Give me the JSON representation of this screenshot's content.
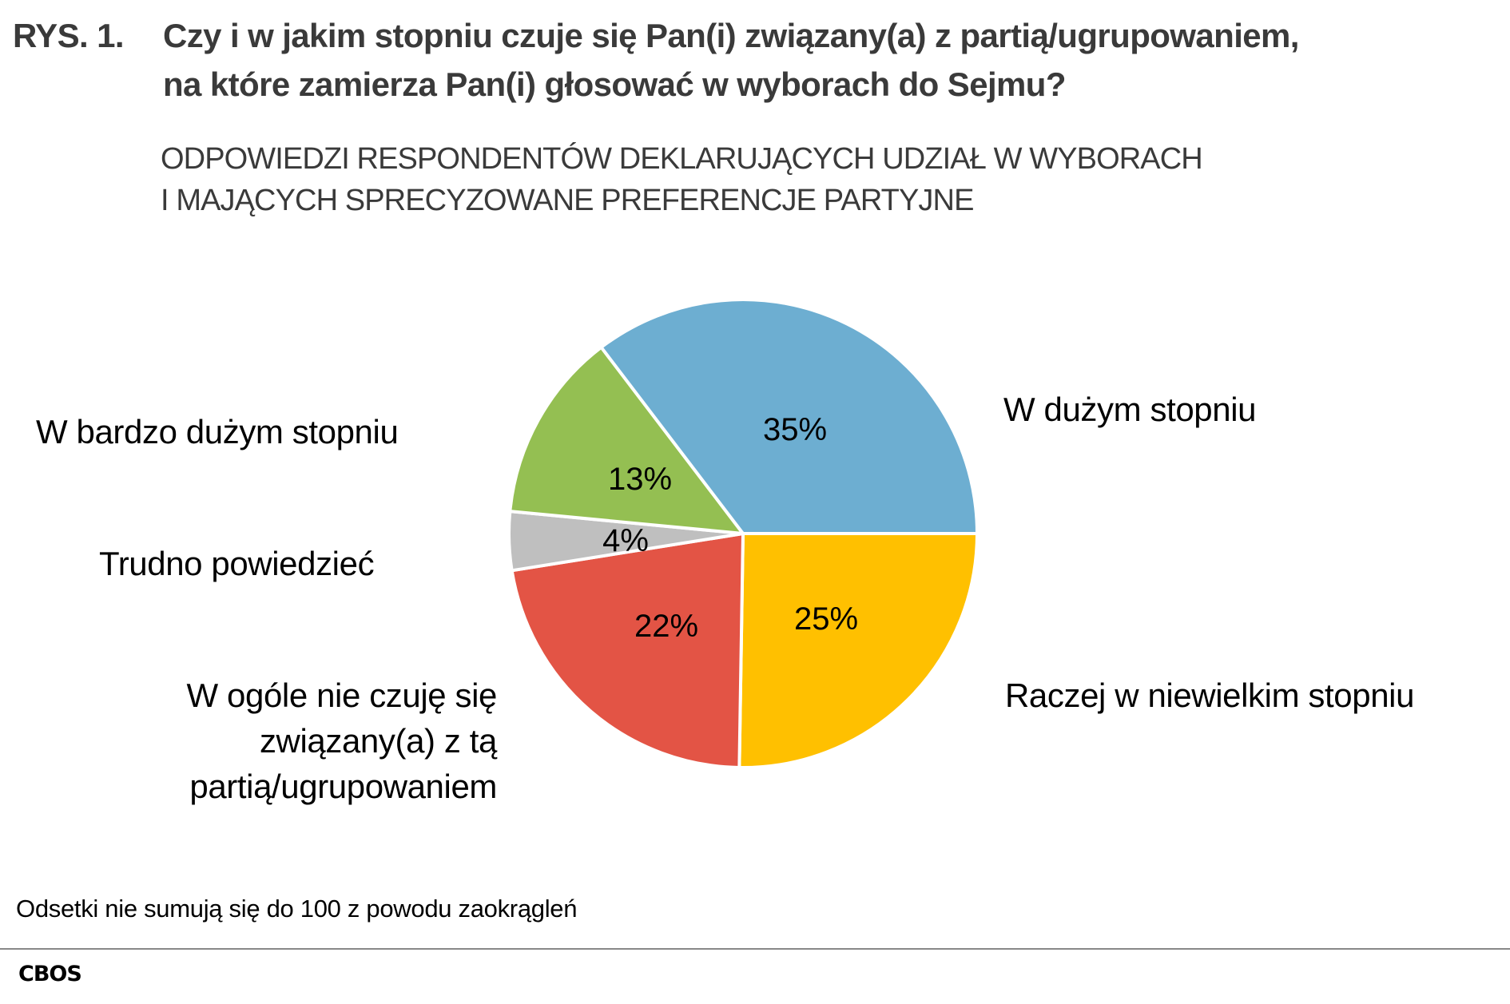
{
  "title": {
    "prefix": "RYS. 1.",
    "line1": "Czy i w jakim stopniu czuje się Pan(i) związany(a) z partią/ugrupowaniem,",
    "line2": "na które zamierza Pan(i) głosować w wyborach do Sejmu?"
  },
  "subtitle": {
    "line1": "ODPOWIEDZI RESPONDENTÓW DEKLARUJĄCYCH UDZIAŁ W WYBORACH",
    "line2": "I MAJĄCYCH SPRECYZOWANE PREFERENCJE PARTYJNE"
  },
  "chart_data": {
    "type": "pie",
    "title": "Czy i w jakim stopniu czuje się Pan(i) związany(a) z partią/ugrupowaniem, na które zamierza Pan(i) głosować w wyborach do Sejmu?",
    "subtitle": "ODPOWIEDZI RESPONDENTÓW DEKLARUJĄCYCH UDZIAŁ W WYBORACH I MAJĄCYCH SPRECYZOWANE PREFERENCJE PARTYJNE",
    "unit": "%",
    "start_angle_deg": 0,
    "direction": "clockwise",
    "slices": [
      {
        "label": "Raczej w niewielkim stopniu",
        "value": 25,
        "display": "25%",
        "color": "#FFC000"
      },
      {
        "label": "W ogóle nie czuję się związany(a) z tą partią/ugrupowaniem",
        "value": 22,
        "display": "22%",
        "color": "#E35445"
      },
      {
        "label": "Trudno powiedzieć",
        "value": 4,
        "display": "4%",
        "color": "#BFBFBF"
      },
      {
        "label": "W bardzo dużym stopniu",
        "value": 13,
        "display": "13%",
        "color": "#94BF52"
      },
      {
        "label": "W dużym stopniu",
        "value": 35,
        "display": "35%",
        "color": "#6DAED1"
      }
    ],
    "legend": "none (category labels placed beside slices)",
    "note": "Odsetki nie sumują się do 100 z powodu zaokrągleń"
  },
  "labels": {
    "duzym": "W dużym stopniu",
    "bardzo_duzym": "W bardzo dużym stopniu",
    "trudno": "Trudno powiedzieć",
    "niewielkim": "Raczej w niewielkim stopniu",
    "wogole": [
      "W ogóle nie czuję się",
      "związany(a) z tą",
      "partią/ugrupowaniem"
    ]
  },
  "percent_labels": {
    "duzym": "35%",
    "bardzo_duzym": "13%",
    "trudno": "4%",
    "wogole": "22%",
    "niewielkim": "25%"
  },
  "footnote": "Odsetki nie sumują się do 100 z powodu zaokrągleń",
  "source": "CBOS"
}
